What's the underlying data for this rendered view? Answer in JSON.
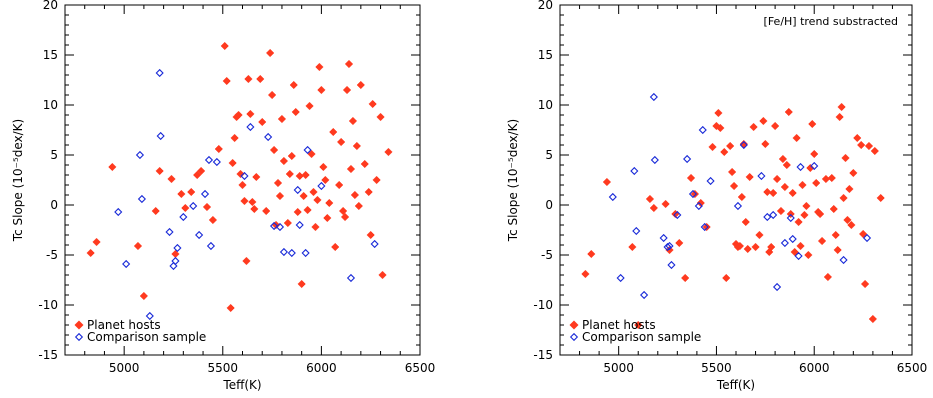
{
  "colors": {
    "planet": "#ff3a1f",
    "comparison": "#1a2bd8",
    "axis": "#000000"
  },
  "chart_data": [
    {
      "type": "scatter",
      "xlabel": "Teff(K)",
      "ylabel": "Tc Slope (10⁻⁵dex/K)",
      "xlim": [
        4700,
        6500
      ],
      "ylim": [
        -15,
        20
      ],
      "xticks": [
        "5000",
        "5500",
        "6000",
        "6500"
      ],
      "yticks": [
        "-15",
        "-10",
        "-5",
        "0",
        "5",
        "10",
        "15",
        "20"
      ],
      "annotation": "",
      "legend_position": "bottom-left",
      "series": [
        {
          "name": "Planet hosts",
          "marker": "filled-diamond",
          "points": [
            [
              4830,
              -4.8
            ],
            [
              4860,
              -3.7
            ],
            [
              4940,
              3.8
            ],
            [
              5070,
              -4.1
            ],
            [
              5100,
              -9.1
            ],
            [
              5160,
              -0.6
            ],
            [
              5180,
              3.4
            ],
            [
              5240,
              2.6
            ],
            [
              5260,
              -4.9
            ],
            [
              5290,
              1.1
            ],
            [
              5310,
              -0.3
            ],
            [
              5340,
              1.3
            ],
            [
              5370,
              3.0
            ],
            [
              5390,
              3.4
            ],
            [
              5420,
              -0.2
            ],
            [
              5450,
              -1.5
            ],
            [
              5480,
              5.6
            ],
            [
              5510,
              15.9
            ],
            [
              5520,
              12.4
            ],
            [
              5540,
              -10.3
            ],
            [
              5550,
              4.2
            ],
            [
              5560,
              6.7
            ],
            [
              5570,
              8.8
            ],
            [
              5580,
              9.0
            ],
            [
              5590,
              3.1
            ],
            [
              5600,
              2.0
            ],
            [
              5610,
              0.4
            ],
            [
              5620,
              -5.6
            ],
            [
              5630,
              12.6
            ],
            [
              5640,
              9.1
            ],
            [
              5650,
              0.3
            ],
            [
              5660,
              -0.4
            ],
            [
              5670,
              2.8
            ],
            [
              5690,
              12.6
            ],
            [
              5700,
              8.3
            ],
            [
              5720,
              -0.6
            ],
            [
              5740,
              15.2
            ],
            [
              5750,
              11.0
            ],
            [
              5760,
              5.5
            ],
            [
              5770,
              -2.0
            ],
            [
              5780,
              2.2
            ],
            [
              5790,
              0.9
            ],
            [
              5800,
              8.6
            ],
            [
              5810,
              4.4
            ],
            [
              5830,
              -1.8
            ],
            [
              5840,
              3.1
            ],
            [
              5850,
              4.9
            ],
            [
              5860,
              12.0
            ],
            [
              5870,
              9.3
            ],
            [
              5880,
              -0.7
            ],
            [
              5890,
              2.9
            ],
            [
              5900,
              -7.9
            ],
            [
              5910,
              0.9
            ],
            [
              5920,
              3.0
            ],
            [
              5930,
              -0.5
            ],
            [
              5940,
              9.9
            ],
            [
              5950,
              5.1
            ],
            [
              5960,
              1.3
            ],
            [
              5970,
              -2.2
            ],
            [
              5980,
              0.5
            ],
            [
              5990,
              13.8
            ],
            [
              6000,
              11.5
            ],
            [
              6010,
              3.8
            ],
            [
              6020,
              2.5
            ],
            [
              6030,
              -1.3
            ],
            [
              6040,
              0.2
            ],
            [
              6060,
              7.3
            ],
            [
              6070,
              -4.2
            ],
            [
              6090,
              2.0
            ],
            [
              6100,
              6.3
            ],
            [
              6110,
              -0.6
            ],
            [
              6120,
              -1.2
            ],
            [
              6130,
              11.5
            ],
            [
              6140,
              14.1
            ],
            [
              6150,
              3.6
            ],
            [
              6160,
              8.4
            ],
            [
              6170,
              1.0
            ],
            [
              6180,
              5.9
            ],
            [
              6190,
              -0.1
            ],
            [
              6200,
              12.0
            ],
            [
              6220,
              4.1
            ],
            [
              6240,
              1.3
            ],
            [
              6250,
              -3.0
            ],
            [
              6260,
              10.1
            ],
            [
              6280,
              2.5
            ],
            [
              6300,
              8.8
            ],
            [
              6310,
              -7.0
            ],
            [
              6340,
              5.3
            ]
          ]
        },
        {
          "name": "Comparison sample",
          "marker": "open-diamond",
          "points": [
            [
              4970,
              -0.7
            ],
            [
              5010,
              -5.9
            ],
            [
              5080,
              5.0
            ],
            [
              5090,
              0.6
            ],
            [
              5130,
              -11.1
            ],
            [
              5180,
              13.2
            ],
            [
              5185,
              6.9
            ],
            [
              5230,
              -2.7
            ],
            [
              5250,
              -6.1
            ],
            [
              5260,
              -5.6
            ],
            [
              5270,
              -4.3
            ],
            [
              5300,
              -1.2
            ],
            [
              5350,
              -0.1
            ],
            [
              5380,
              -3.0
            ],
            [
              5410,
              1.1
            ],
            [
              5430,
              4.5
            ],
            [
              5440,
              -4.1
            ],
            [
              5470,
              4.3
            ],
            [
              5610,
              2.9
            ],
            [
              5640,
              7.8
            ],
            [
              5730,
              6.8
            ],
            [
              5760,
              -2.1
            ],
            [
              5790,
              -2.2
            ],
            [
              5810,
              -4.7
            ],
            [
              5850,
              -4.8
            ],
            [
              5880,
              1.5
            ],
            [
              5890,
              -2.0
            ],
            [
              5920,
              -4.8
            ],
            [
              5930,
              5.5
            ],
            [
              6000,
              1.9
            ],
            [
              6150,
              -7.3
            ],
            [
              6270,
              -3.9
            ]
          ]
        }
      ]
    },
    {
      "type": "scatter",
      "xlabel": "Teff(K)",
      "ylabel": "Tc Slope (10⁻⁵dex/K)",
      "xlim": [
        4700,
        6500
      ],
      "ylim": [
        -15,
        20
      ],
      "xticks": [
        "5000",
        "5500",
        "6000",
        "6500"
      ],
      "yticks": [
        "-15",
        "-10",
        "-5",
        "0",
        "5",
        "10",
        "15",
        "20"
      ],
      "annotation": "[Fe/H] trend substracted",
      "legend_position": "bottom-left",
      "series": [
        {
          "name": "Planet hosts",
          "marker": "filled-diamond",
          "points": [
            [
              4830,
              -6.9
            ],
            [
              4860,
              -4.9
            ],
            [
              4940,
              2.3
            ],
            [
              5070,
              -4.2
            ],
            [
              5100,
              -12.0
            ],
            [
              5160,
              0.6
            ],
            [
              5180,
              -0.3
            ],
            [
              5240,
              0.1
            ],
            [
              5260,
              -4.5
            ],
            [
              5290,
              -0.9
            ],
            [
              5310,
              -3.8
            ],
            [
              5340,
              -7.3
            ],
            [
              5370,
              2.7
            ],
            [
              5390,
              1.1
            ],
            [
              5420,
              0.2
            ],
            [
              5450,
              -2.2
            ],
            [
              5480,
              5.8
            ],
            [
              5500,
              7.9
            ],
            [
              5510,
              9.2
            ],
            [
              5520,
              7.7
            ],
            [
              5540,
              5.3
            ],
            [
              5550,
              -7.3
            ],
            [
              5570,
              5.9
            ],
            [
              5580,
              3.3
            ],
            [
              5590,
              1.9
            ],
            [
              5600,
              -3.9
            ],
            [
              5610,
              -4.2
            ],
            [
              5620,
              -4.1
            ],
            [
              5630,
              0.8
            ],
            [
              5640,
              6.1
            ],
            [
              5650,
              -1.7
            ],
            [
              5660,
              -4.4
            ],
            [
              5670,
              2.8
            ],
            [
              5690,
              7.8
            ],
            [
              5700,
              -4.2
            ],
            [
              5720,
              -3.0
            ],
            [
              5740,
              8.4
            ],
            [
              5750,
              6.1
            ],
            [
              5760,
              1.3
            ],
            [
              5770,
              -4.7
            ],
            [
              5780,
              -4.2
            ],
            [
              5790,
              1.2
            ],
            [
              5800,
              7.9
            ],
            [
              5810,
              2.6
            ],
            [
              5830,
              -0.6
            ],
            [
              5840,
              4.6
            ],
            [
              5850,
              1.8
            ],
            [
              5860,
              4.0
            ],
            [
              5870,
              9.3
            ],
            [
              5880,
              -0.9
            ],
            [
              5890,
              1.2
            ],
            [
              5900,
              -4.7
            ],
            [
              5910,
              6.7
            ],
            [
              5920,
              -1.7
            ],
            [
              5930,
              -4.1
            ],
            [
              5940,
              2.0
            ],
            [
              5950,
              -1.0
            ],
            [
              5960,
              -0.1
            ],
            [
              5970,
              -5.0
            ],
            [
              5980,
              3.7
            ],
            [
              5990,
              8.1
            ],
            [
              6000,
              5.1
            ],
            [
              6010,
              2.2
            ],
            [
              6020,
              -0.7
            ],
            [
              6030,
              -0.9
            ],
            [
              6040,
              -3.6
            ],
            [
              6060,
              2.6
            ],
            [
              6070,
              -7.2
            ],
            [
              6090,
              2.7
            ],
            [
              6100,
              -0.4
            ],
            [
              6110,
              -3.0
            ],
            [
              6120,
              -4.5
            ],
            [
              6130,
              8.8
            ],
            [
              6140,
              9.8
            ],
            [
              6150,
              0.7
            ],
            [
              6160,
              4.7
            ],
            [
              6170,
              -1.5
            ],
            [
              6180,
              1.6
            ],
            [
              6190,
              -2.0
            ],
            [
              6200,
              3.2
            ],
            [
              6220,
              6.7
            ],
            [
              6240,
              6.0
            ],
            [
              6250,
              -2.9
            ],
            [
              6260,
              -7.9
            ],
            [
              6280,
              5.9
            ],
            [
              6300,
              -11.4
            ],
            [
              6310,
              5.4
            ],
            [
              6340,
              0.7
            ]
          ]
        },
        {
          "name": "Comparison sample",
          "marker": "open-diamond",
          "points": [
            [
              4970,
              0.8
            ],
            [
              5010,
              -7.3
            ],
            [
              5080,
              3.4
            ],
            [
              5090,
              -2.6
            ],
            [
              5130,
              -9.0
            ],
            [
              5180,
              10.8
            ],
            [
              5185,
              4.5
            ],
            [
              5230,
              -3.3
            ],
            [
              5250,
              -4.2
            ],
            [
              5260,
              -4.1
            ],
            [
              5270,
              -6.0
            ],
            [
              5300,
              -1.0
            ],
            [
              5350,
              4.6
            ],
            [
              5380,
              1.1
            ],
            [
              5410,
              -0.1
            ],
            [
              5430,
              7.5
            ],
            [
              5440,
              -2.2
            ],
            [
              5470,
              2.4
            ],
            [
              5610,
              -0.1
            ],
            [
              5640,
              6.0
            ],
            [
              5730,
              2.9
            ],
            [
              5760,
              -1.2
            ],
            [
              5790,
              -1.0
            ],
            [
              5810,
              -8.2
            ],
            [
              5850,
              -3.8
            ],
            [
              5880,
              -1.3
            ],
            [
              5890,
              -3.4
            ],
            [
              5920,
              -5.1
            ],
            [
              5930,
              3.8
            ],
            [
              6000,
              3.9
            ],
            [
              6150,
              -5.5
            ],
            [
              6270,
              -3.3
            ]
          ]
        }
      ]
    }
  ]
}
